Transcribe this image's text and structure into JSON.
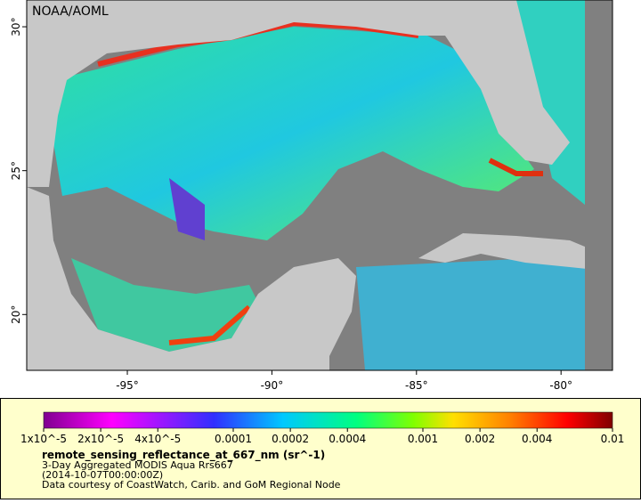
{
  "map": {
    "credit": "NOAA/AOML",
    "lon_range": [
      -98.48,
      -78.22
    ],
    "lat_range": [
      18.06,
      30.93
    ],
    "lon_ticks": [
      {
        "value": -95,
        "label": "-95°"
      },
      {
        "value": -90,
        "label": "-90°"
      },
      {
        "value": -85,
        "label": "-85°"
      },
      {
        "value": -80,
        "label": "-80°"
      }
    ],
    "lat_ticks": [
      {
        "value": 30,
        "label": "30°"
      },
      {
        "value": 25,
        "label": "25°"
      },
      {
        "value": 20,
        "label": "20°"
      }
    ]
  },
  "colorbar": {
    "scale": "log",
    "range": [
      1e-05,
      0.01
    ],
    "ticks": [
      {
        "value": 1e-05,
        "label": "1x10^-5"
      },
      {
        "value": 2e-05,
        "label": "2x10^-5"
      },
      {
        "value": 4e-05,
        "label": "4x10^-5"
      },
      0.0001,
      0.0002,
      0.0004,
      0.001,
      0.002,
      0.004,
      0.01
    ]
  },
  "caption": {
    "variable": "remote_sensing_reflectance_at_667_nm (sr^-1)",
    "lines": [
      "3-Day Aggregated MODIS Aqua Rrs667",
      "(2014-10-07T00:00:00Z)",
      "Data courtesy of CoastWatch, Carib. and GoM Regional Node"
    ]
  }
}
